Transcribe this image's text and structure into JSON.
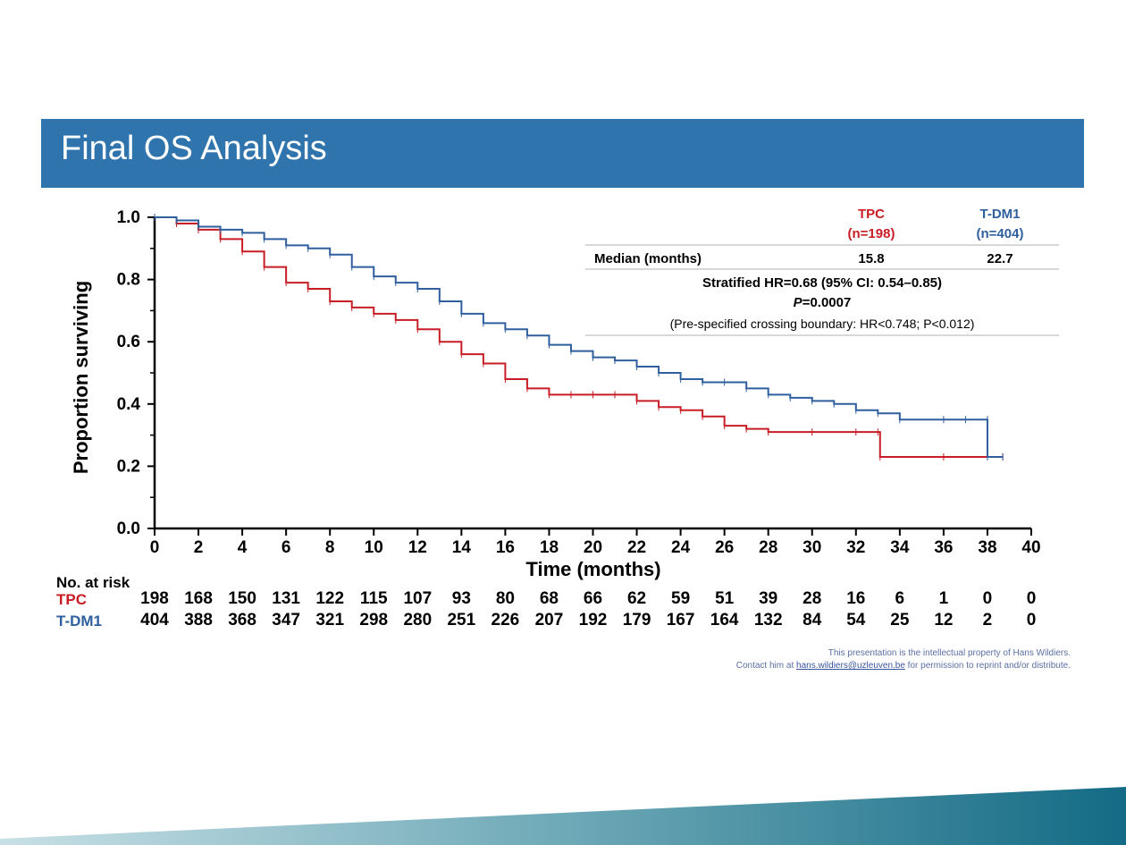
{
  "title": "Final OS Analysis",
  "colors": {
    "tpc": "#c81d25",
    "tdm1": "#2f5f9e",
    "title_bar": "#2f74ad",
    "footer_start": "#a7cdd6",
    "footer_end": "#146b85"
  },
  "table": {
    "header_tpc": [
      "TPC",
      "(n=198)"
    ],
    "header_tdm1": [
      "T-DM1",
      "(n=404)"
    ],
    "median_label": "Median (months)",
    "median_tpc": "15.8",
    "median_tdm1": "22.7",
    "hr_line": "Stratified HR=0.68 (95% CI: 0.54–0.85)",
    "p_prefix": "P",
    "p_value": "=0.0007",
    "boundary_text": "(Pre-specified crossing boundary: HR<0.748; P<0.012)"
  },
  "risk_table": {
    "header": "No. at risk",
    "rows": [
      {
        "label": "TPC",
        "values": [
          198,
          168,
          150,
          131,
          122,
          115,
          107,
          93,
          80,
          68,
          66,
          62,
          59,
          51,
          39,
          28,
          16,
          6,
          1,
          0,
          0
        ]
      },
      {
        "label": "T-DM1",
        "values": [
          404,
          388,
          368,
          347,
          321,
          298,
          280,
          251,
          226,
          207,
          192,
          179,
          167,
          164,
          132,
          84,
          54,
          25,
          12,
          2,
          0
        ]
      }
    ]
  },
  "credit": {
    "line1": "This presentation is the intellectual property of Hans Wildiers.",
    "line2_prefix": "Contact him at ",
    "email": "hans.wildiers@uzleuven.be",
    "line2_suffix": " for permission to reprint and/or distribute."
  },
  "chart_data": {
    "type": "line",
    "title": "",
    "xlabel": "Time (months)",
    "ylabel": "Proportion surviving",
    "xlim": [
      0,
      40
    ],
    "ylim": [
      0,
      1.0
    ],
    "xticks": [
      0,
      2,
      4,
      6,
      8,
      10,
      12,
      14,
      16,
      18,
      20,
      22,
      24,
      26,
      28,
      30,
      32,
      34,
      36,
      38,
      40
    ],
    "yticks": [
      0.0,
      0.2,
      0.4,
      0.6,
      0.8,
      1.0
    ],
    "ytick_labels": [
      "0.0",
      "0.2",
      "0.4",
      "0.6",
      "0.8",
      "1.0"
    ],
    "series": [
      {
        "name": "TPC",
        "points": [
          [
            0,
            1.0
          ],
          [
            1,
            0.98
          ],
          [
            2,
            0.96
          ],
          [
            3,
            0.93
          ],
          [
            4,
            0.89
          ],
          [
            5,
            0.84
          ],
          [
            6,
            0.79
          ],
          [
            7,
            0.77
          ],
          [
            8,
            0.73
          ],
          [
            9,
            0.71
          ],
          [
            10,
            0.69
          ],
          [
            11,
            0.67
          ],
          [
            12,
            0.64
          ],
          [
            13,
            0.6
          ],
          [
            14,
            0.56
          ],
          [
            15,
            0.53
          ],
          [
            16,
            0.48
          ],
          [
            17,
            0.45
          ],
          [
            18,
            0.43
          ],
          [
            19,
            0.43
          ],
          [
            20,
            0.43
          ],
          [
            21,
            0.43
          ],
          [
            22,
            0.41
          ],
          [
            23,
            0.39
          ],
          [
            24,
            0.38
          ],
          [
            25,
            0.36
          ],
          [
            26,
            0.33
          ],
          [
            27,
            0.32
          ],
          [
            28,
            0.31
          ],
          [
            30,
            0.31
          ],
          [
            32,
            0.31
          ],
          [
            33,
            0.31
          ],
          [
            33.1,
            0.23
          ],
          [
            36,
            0.23
          ],
          [
            38.7,
            0.23
          ]
        ]
      },
      {
        "name": "T-DM1",
        "points": [
          [
            0,
            1.0
          ],
          [
            1,
            0.99
          ],
          [
            2,
            0.97
          ],
          [
            3,
            0.96
          ],
          [
            4,
            0.95
          ],
          [
            5,
            0.93
          ],
          [
            6,
            0.91
          ],
          [
            7,
            0.9
          ],
          [
            8,
            0.88
          ],
          [
            9,
            0.84
          ],
          [
            10,
            0.81
          ],
          [
            11,
            0.79
          ],
          [
            12,
            0.77
          ],
          [
            13,
            0.73
          ],
          [
            14,
            0.69
          ],
          [
            15,
            0.66
          ],
          [
            16,
            0.64
          ],
          [
            17,
            0.62
          ],
          [
            18,
            0.59
          ],
          [
            19,
            0.57
          ],
          [
            20,
            0.55
          ],
          [
            21,
            0.54
          ],
          [
            22,
            0.52
          ],
          [
            23,
            0.5
          ],
          [
            24,
            0.48
          ],
          [
            25,
            0.47
          ],
          [
            26,
            0.47
          ],
          [
            27,
            0.45
          ],
          [
            28,
            0.43
          ],
          [
            29,
            0.42
          ],
          [
            30,
            0.41
          ],
          [
            31,
            0.4
          ],
          [
            32,
            0.38
          ],
          [
            33,
            0.37
          ],
          [
            34,
            0.35
          ],
          [
            36,
            0.35
          ],
          [
            37,
            0.35
          ],
          [
            38,
            0.35
          ],
          [
            38,
            0.23
          ],
          [
            38.7,
            0.23
          ]
        ]
      }
    ]
  }
}
